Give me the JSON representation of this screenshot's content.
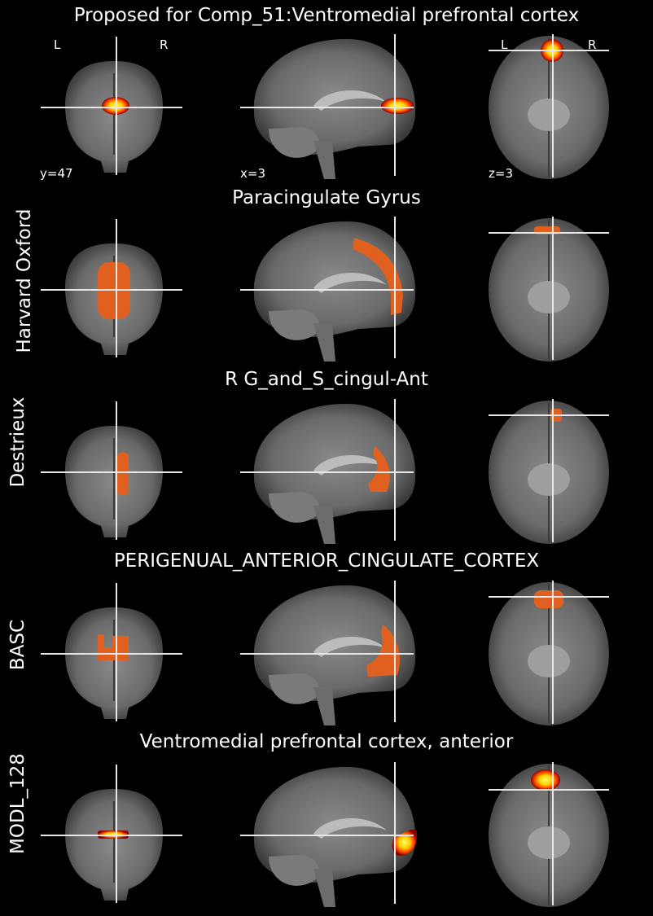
{
  "figure": {
    "top_title": "Proposed for Comp_51:Ventromedial prefrontal cortex",
    "orientation_left": "L",
    "orientation_right": "R",
    "coords": {
      "coronal": "y=47",
      "sagittal": "x=3",
      "axial": "z=3"
    },
    "colors": {
      "background": "#000000",
      "overlay_atlas": "#e06020",
      "heat_low": "#8b0000",
      "heat_mid": "#ff4500",
      "heat_high": "#ffff60",
      "crosshair": "#e8e8e8"
    }
  },
  "rows": [
    {
      "atlas": "",
      "region": "Proposed for Comp_51:Ventromedial prefrontal cortex",
      "overlay": "heat"
    },
    {
      "atlas": "Harvard Oxford",
      "region": "Paracingulate Gyrus",
      "overlay": "atlas"
    },
    {
      "atlas": "Destrieux",
      "region": "R G_and_S_cingul-Ant",
      "overlay": "atlas"
    },
    {
      "atlas": "BASC",
      "region": "PERIGENUAL_ANTERIOR_CINGULATE_CORTEX",
      "overlay": "atlas"
    },
    {
      "atlas": "MODL_128",
      "region": "Ventromedial prefrontal cortex, anterior",
      "overlay": "heat"
    }
  ]
}
